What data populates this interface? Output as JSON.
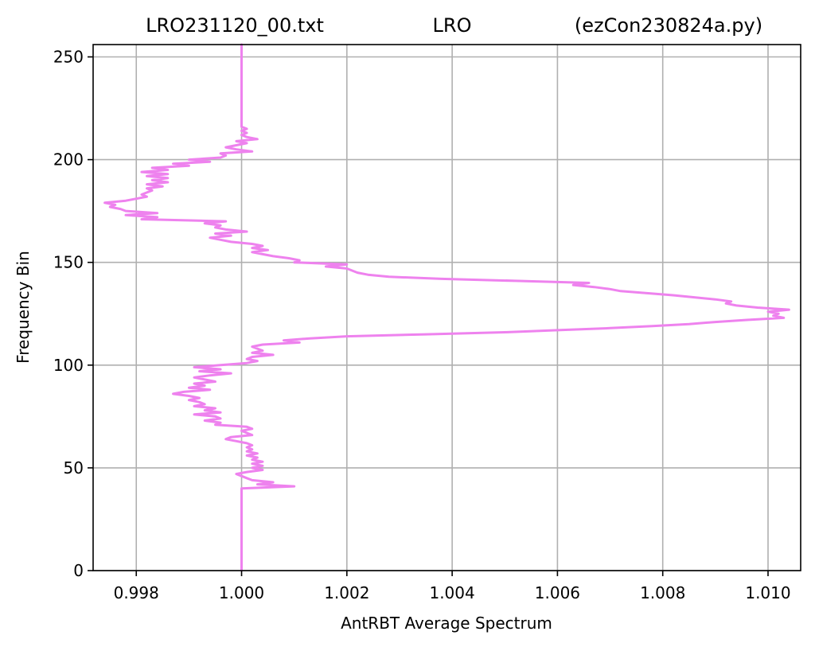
{
  "chart_data": {
    "type": "line",
    "title_left": "LRO231120_00.txt",
    "title_center": "LRO",
    "title_right": "(ezCon230824a.py)",
    "xlabel": "AntRBT Average Spectrum",
    "ylabel": "Frequency Bin",
    "xlim": [
      0.99718,
      1.01062
    ],
    "ylim": [
      0,
      256
    ],
    "x_ticks": [
      0.998,
      1.0,
      1.002,
      1.004,
      1.006,
      1.008,
      1.01
    ],
    "x_tick_labels": [
      "0.998",
      "1.000",
      "1.002",
      "1.004",
      "1.006",
      "1.008",
      "1.010"
    ],
    "y_ticks": [
      0,
      50,
      100,
      150,
      200,
      250
    ],
    "y_tick_labels": [
      "0",
      "50",
      "100",
      "150",
      "200",
      "250"
    ],
    "grid": true,
    "legend": "none",
    "line_color": "#ee82ee",
    "series": [
      {
        "points": [
          [
            1.0,
            0
          ],
          [
            1.0,
            38
          ],
          [
            1.0,
            39
          ],
          [
            1.0,
            40
          ],
          [
            1.001,
            41
          ],
          [
            1.0003,
            42
          ],
          [
            1.0006,
            43
          ],
          [
            1.0002,
            44
          ],
          [
            1.0001,
            45
          ],
          [
            1.0,
            46
          ],
          [
            0.9999,
            47
          ],
          [
            1.0001,
            48
          ],
          [
            1.0004,
            49
          ],
          [
            1.0002,
            50
          ],
          [
            1.0004,
            51
          ],
          [
            1.0002,
            52
          ],
          [
            1.0004,
            53
          ],
          [
            1.0002,
            54
          ],
          [
            1.0003,
            55
          ],
          [
            1.0001,
            56
          ],
          [
            1.0003,
            57
          ],
          [
            1.0001,
            58
          ],
          [
            1.0002,
            59
          ],
          [
            1.0001,
            60
          ],
          [
            1.0002,
            61
          ],
          [
            1.0001,
            62
          ],
          [
            0.9999,
            63
          ],
          [
            0.9997,
            64
          ],
          [
            0.9998,
            65
          ],
          [
            1.0002,
            66
          ],
          [
            1.0001,
            67
          ],
          [
            1.0,
            68
          ],
          [
            1.0002,
            69
          ],
          [
            1.0001,
            70
          ],
          [
            0.9995,
            71
          ],
          [
            0.9996,
            72
          ],
          [
            0.9993,
            73
          ],
          [
            0.9996,
            74
          ],
          [
            0.9995,
            75
          ],
          [
            0.9991,
            76
          ],
          [
            0.9996,
            77
          ],
          [
            0.9993,
            78
          ],
          [
            0.9995,
            79
          ],
          [
            0.9991,
            80
          ],
          [
            0.9993,
            81
          ],
          [
            0.9992,
            82
          ],
          [
            0.999,
            83
          ],
          [
            0.9992,
            84
          ],
          [
            0.999,
            85
          ],
          [
            0.9987,
            86
          ],
          [
            0.9989,
            87
          ],
          [
            0.9994,
            88
          ],
          [
            0.999,
            89
          ],
          [
            0.9993,
            90
          ],
          [
            0.9991,
            91
          ],
          [
            0.9995,
            92
          ],
          [
            0.9993,
            93
          ],
          [
            0.9991,
            94
          ],
          [
            0.9994,
            95
          ],
          [
            0.9998,
            96
          ],
          [
            0.9992,
            97
          ],
          [
            0.9996,
            98
          ],
          [
            0.9991,
            99
          ],
          [
            0.9996,
            100
          ],
          [
            1.0001,
            101
          ],
          [
            1.0003,
            102
          ],
          [
            1.0001,
            103
          ],
          [
            1.0002,
            104
          ],
          [
            1.0006,
            105
          ],
          [
            1.0002,
            106
          ],
          [
            1.0004,
            107
          ],
          [
            1.0003,
            108
          ],
          [
            1.0002,
            109
          ],
          [
            1.0004,
            110
          ],
          [
            1.0011,
            111
          ],
          [
            1.0008,
            112
          ],
          [
            1.0013,
            113
          ],
          [
            1.002,
            114
          ],
          [
            1.0035,
            115
          ],
          [
            1.005,
            116
          ],
          [
            1.006,
            117
          ],
          [
            1.007,
            118
          ],
          [
            1.0078,
            119
          ],
          [
            1.0085,
            120
          ],
          [
            1.009,
            121
          ],
          [
            1.0096,
            122
          ],
          [
            1.0103,
            123
          ],
          [
            1.0101,
            124
          ],
          [
            1.0102,
            125
          ],
          [
            1.01,
            126
          ],
          [
            1.0104,
            127
          ],
          [
            1.0098,
            128
          ],
          [
            1.0094,
            129
          ],
          [
            1.0092,
            130
          ],
          [
            1.0093,
            131
          ],
          [
            1.009,
            132
          ],
          [
            1.0086,
            133
          ],
          [
            1.0082,
            134
          ],
          [
            1.0077,
            135
          ],
          [
            1.0072,
            136
          ],
          [
            1.007,
            137
          ],
          [
            1.0067,
            138
          ],
          [
            1.0063,
            139
          ],
          [
            1.0066,
            140
          ],
          [
            1.0052,
            141
          ],
          [
            1.0038,
            142
          ],
          [
            1.0028,
            143
          ],
          [
            1.0024,
            144
          ],
          [
            1.0022,
            145
          ],
          [
            1.0021,
            146
          ],
          [
            1.002,
            147
          ],
          [
            1.0016,
            148
          ],
          [
            1.002,
            149
          ],
          [
            1.001,
            150
          ],
          [
            1.0011,
            151
          ],
          [
            1.0009,
            152
          ],
          [
            1.0006,
            153
          ],
          [
            1.0004,
            154
          ],
          [
            1.0002,
            155
          ],
          [
            1.0005,
            156
          ],
          [
            1.0002,
            157
          ],
          [
            1.0004,
            158
          ],
          [
            1.0002,
            159
          ],
          [
            0.9998,
            160
          ],
          [
            0.9996,
            161
          ],
          [
            0.9994,
            162
          ],
          [
            0.9998,
            163
          ],
          [
            0.9995,
            164
          ],
          [
            1.0001,
            165
          ],
          [
            0.9997,
            166
          ],
          [
            0.9995,
            167
          ],
          [
            0.9996,
            168
          ],
          [
            0.9993,
            169
          ],
          [
            0.9997,
            170
          ],
          [
            0.9981,
            171
          ],
          [
            0.9984,
            172
          ],
          [
            0.9978,
            173
          ],
          [
            0.9984,
            174
          ],
          [
            0.9978,
            175
          ],
          [
            0.9977,
            176
          ],
          [
            0.9975,
            177
          ],
          [
            0.9976,
            178
          ],
          [
            0.9974,
            179
          ],
          [
            0.9978,
            180
          ],
          [
            0.998,
            181
          ],
          [
            0.9982,
            182
          ],
          [
            0.9981,
            183
          ],
          [
            0.9982,
            184
          ],
          [
            0.9983,
            185
          ],
          [
            0.9982,
            186
          ],
          [
            0.9985,
            187
          ],
          [
            0.9982,
            188
          ],
          [
            0.9986,
            189
          ],
          [
            0.9983,
            190
          ],
          [
            0.9986,
            191
          ],
          [
            0.9982,
            192
          ],
          [
            0.9986,
            193
          ],
          [
            0.9981,
            194
          ],
          [
            0.9986,
            195
          ],
          [
            0.9983,
            196
          ],
          [
            0.999,
            197
          ],
          [
            0.9987,
            198
          ],
          [
            0.9994,
            199
          ],
          [
            0.999,
            200
          ],
          [
            0.9996,
            201
          ],
          [
            0.9997,
            202
          ],
          [
            0.9996,
            203
          ],
          [
            1.0002,
            204
          ],
          [
            0.9999,
            205
          ],
          [
            0.9997,
            206
          ],
          [
            0.9999,
            207
          ],
          [
            1.0001,
            208
          ],
          [
            0.9999,
            209
          ],
          [
            1.0003,
            210
          ],
          [
            1.0001,
            211
          ],
          [
            1.0,
            212
          ],
          [
            1.0001,
            213
          ],
          [
            1.0,
            214
          ],
          [
            1.0001,
            215
          ],
          [
            1.0,
            216
          ],
          [
            1.0,
            230
          ],
          [
            1.0,
            256
          ]
        ]
      }
    ]
  }
}
